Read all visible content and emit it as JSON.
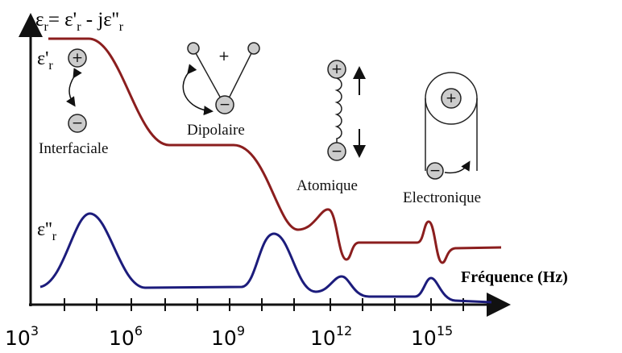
{
  "y_axis_label": {
    "eps": "ε",
    "sub": "r",
    "eq": "= ε'",
    "minus_j": " - jε''"
  },
  "curve_labels": {
    "real": "ε'",
    "imag": "ε''",
    "sub": "r"
  },
  "mechanisms": [
    "Interfaciale",
    "Dipolaire",
    "Atomique",
    "Electronique"
  ],
  "charges": {
    "plus": "+",
    "minus": "−"
  },
  "x_axis_label": "Fréquence (Hz)",
  "x_ticks": {
    "base": "10",
    "exponents": [
      "3",
      "6",
      "9",
      "12",
      "15"
    ]
  }
}
